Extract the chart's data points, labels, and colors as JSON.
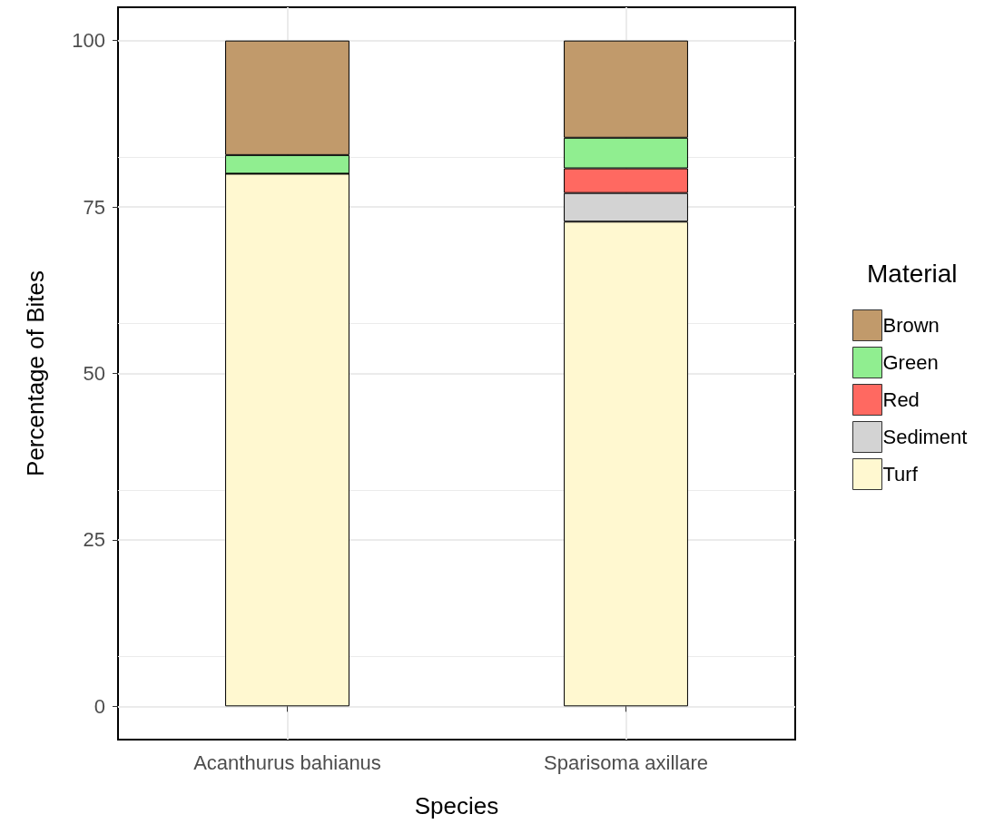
{
  "chart_data": {
    "type": "bar",
    "stacked": true,
    "xlabel": "Species",
    "ylabel": "Percentage of Bites",
    "legend_title": "Material",
    "categories": [
      "Acanthurus bahianus",
      "Sparisoma axillare"
    ],
    "series": [
      {
        "name": "Turf",
        "color": "#fff8d0",
        "values": [
          80.0,
          72.8
        ]
      },
      {
        "name": "Sediment",
        "color": "#d3d3d3",
        "values": [
          0,
          4.3
        ]
      },
      {
        "name": "Red",
        "color": "#ff6961",
        "values": [
          0,
          3.7
        ]
      },
      {
        "name": "Green",
        "color": "#90ee90",
        "values": [
          2.8,
          4.6
        ]
      },
      {
        "name": "Brown",
        "color": "#c19a6b",
        "values": [
          17.2,
          14.6
        ]
      }
    ],
    "ylim": [
      -5,
      105
    ],
    "yticks": [
      0,
      25,
      50,
      75,
      100
    ],
    "grid": true,
    "legend": "right"
  }
}
